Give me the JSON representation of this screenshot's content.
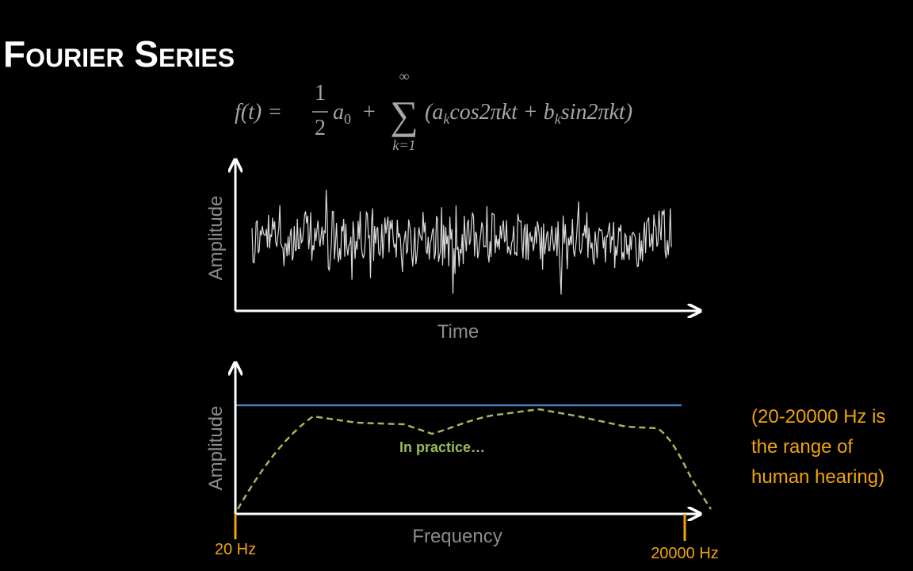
{
  "title": "Fourier Series",
  "formula": {
    "lhs": "f(t) =",
    "numerator": "1",
    "denominator": "2",
    "a": "a",
    "a_sub": "0",
    "plus": "+",
    "sum": "∑",
    "sum_upper": "∞",
    "sum_lower": "k=1",
    "open": "(a",
    "k1": "k",
    "cos_term": "cos2πkt + b",
    "k2": "k",
    "sin_term": "sin2πkt)"
  },
  "time_plot": {
    "y_label": "Amplitude",
    "x_label": "Time"
  },
  "frequency_plot": {
    "y_label": "Amplitude",
    "x_label": "Frequency",
    "annotation": "In practice…",
    "left_marker": "20 Hz",
    "right_marker": "20000 Hz"
  },
  "note": [
    "(20-20000 Hz is",
    "the range of",
    "human hearing)"
  ]
}
